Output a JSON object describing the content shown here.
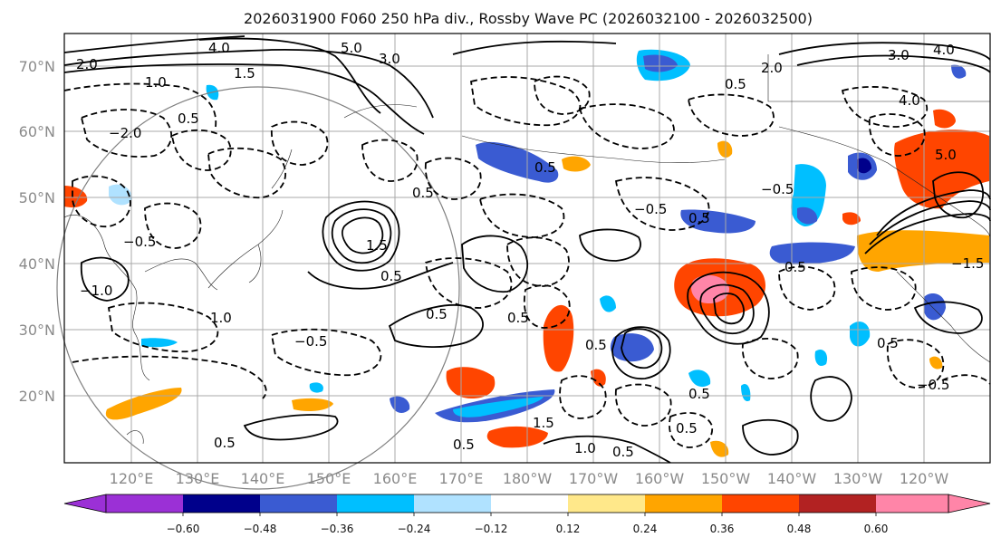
{
  "title": "2026031900 F060 250 hPa div., Rossby Wave PC (2026032100 - 2026032500)",
  "lat_labels": [
    "70°N",
    "60°N",
    "50°N",
    "40°N",
    "30°N",
    "20°N"
  ],
  "lon_labels": [
    "120°E",
    "130°E",
    "140°E",
    "150°E",
    "160°E",
    "170°E",
    "180°W",
    "170°W",
    "160°W",
    "150°W",
    "140°W",
    "130°W",
    "120°W"
  ],
  "colorbar": {
    "ticks": [
      "−0.60",
      "−0.48",
      "−0.36",
      "−0.24",
      "−0.12",
      "0.12",
      "0.24",
      "0.36",
      "0.48",
      "0.60"
    ],
    "colors": [
      "#9b30d6",
      "#00008b",
      "#3a5bd2",
      "#00bfff",
      "#b0e2ff",
      "#ffffff",
      "#ffe88a",
      "#ffa500",
      "#ff4500",
      "#b22222",
      "#ff85a8"
    ]
  },
  "contour_labels": [
    "4.0",
    "4.0",
    "5.0",
    "3.0",
    "2.0",
    "1.5",
    "1.0",
    "0.5",
    "−2.0",
    "−0.5",
    "0.5",
    "1.0",
    "−1.0",
    "0.5",
    "−0.5",
    "0.5",
    "0.5",
    "0.5",
    "1.0",
    "0.5",
    "−0.5",
    "0.5",
    "1.5",
    "0.5",
    "0.5",
    "0.5",
    "0.5",
    "−0.5",
    "2.0",
    "3.0",
    "4.0",
    "5.0",
    "−1.5",
    "−0.5",
    "0.5",
    "0.5",
    "1.5",
    "0.5",
    "0.5"
  ]
}
